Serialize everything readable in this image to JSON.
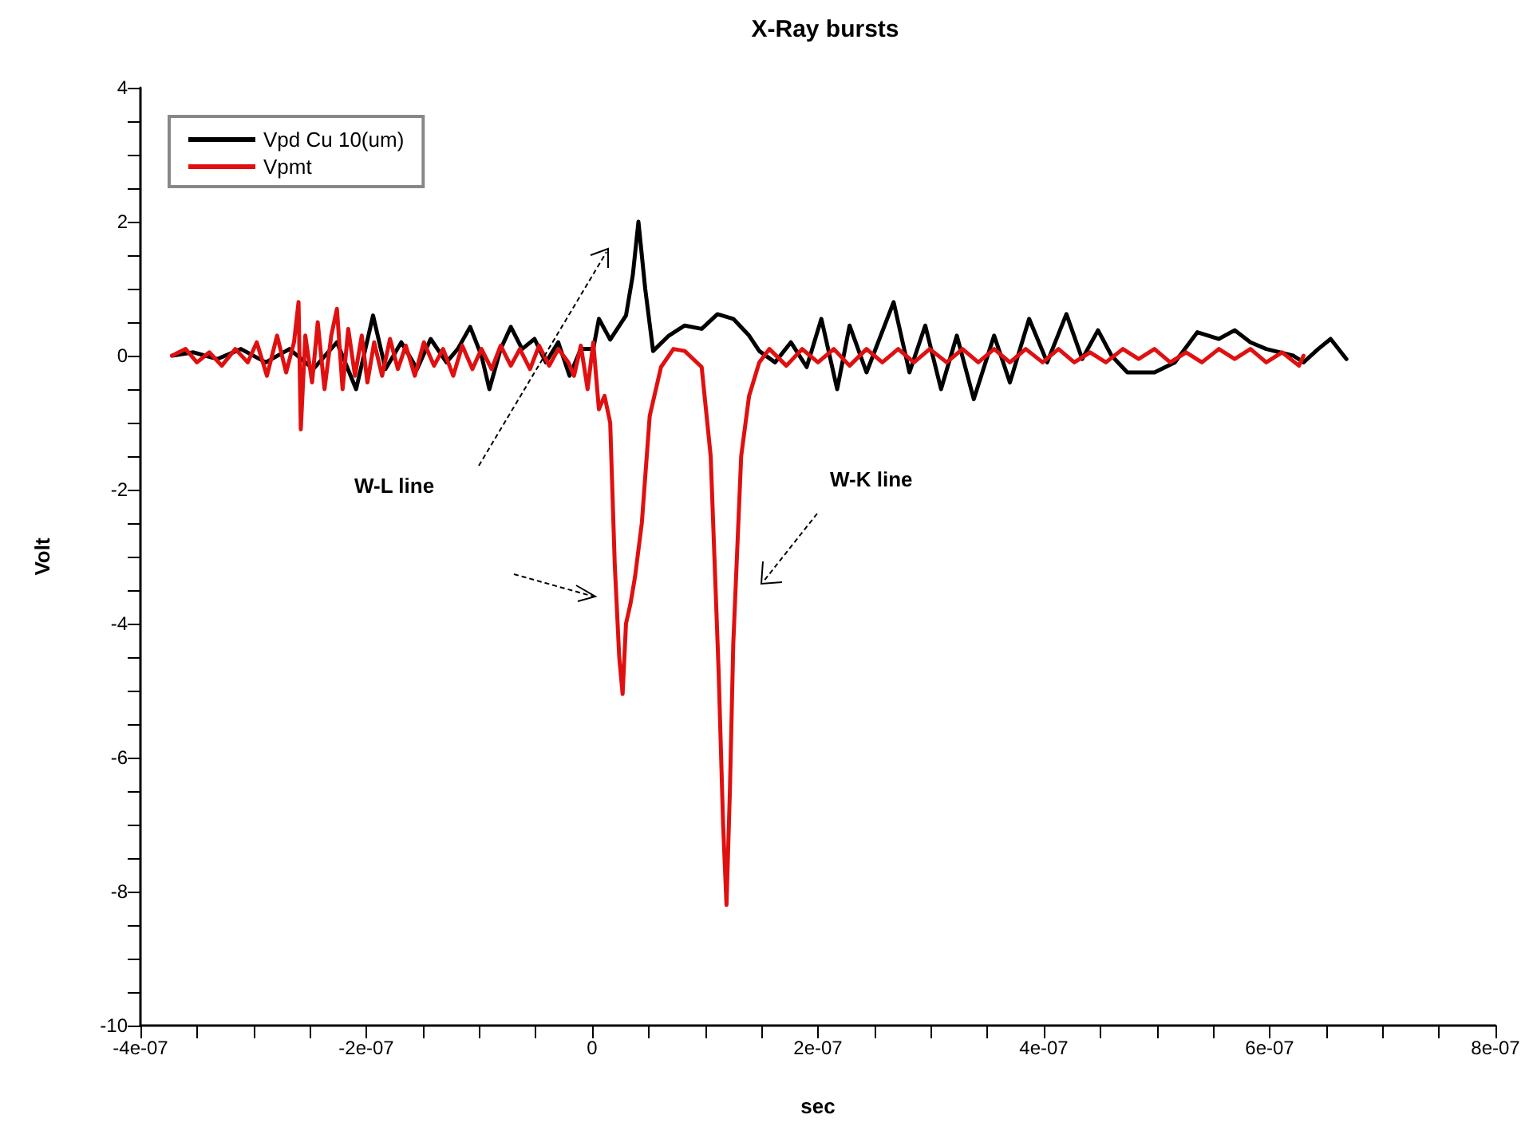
{
  "chart_data": {
    "type": "line",
    "title": "X-Ray bursts",
    "xlabel": "sec",
    "ylabel": "Volt",
    "annotations": [
      "W-L line",
      "W-K line"
    ],
    "series": [
      {
        "name": "Vpd Cu 10(um)",
        "color": "#000000",
        "x": [
          -3.72e-07,
          -3.53e-07,
          -3.32e-07,
          -3.11e-07,
          -2.89e-07,
          -2.68e-07,
          -2.47e-07,
          -2.26e-07,
          -2.09e-07,
          -1.94e-07,
          -1.83e-07,
          -1.69e-07,
          -1.55e-07,
          -1.43e-07,
          -1.29e-07,
          -1.19e-07,
          -1.08e-07,
          -9.8e-08,
          -9.1e-08,
          -8.1e-08,
          -7.2e-08,
          -6.2e-08,
          -5.1e-08,
          -4.1e-08,
          -3e-08,
          -2e-08,
          -1e-08,
          1e-09,
          6e-09,
          1.6e-08,
          3e-08,
          3.6e-08,
          4.1e-08,
          4.7e-08,
          5.4e-08,
          6.8e-08,
          8.2e-08,
          9.7e-08,
          1.11e-07,
          1.25e-07,
          1.39e-07,
          1.48e-07,
          1.62e-07,
          1.76e-07,
          1.9e-07,
          2.03e-07,
          2.17e-07,
          2.28e-07,
          2.43e-07,
          2.67e-07,
          2.81e-07,
          2.95e-07,
          3.09e-07,
          3.23e-07,
          3.38e-07,
          3.56e-07,
          3.7e-07,
          3.87e-07,
          4.03e-07,
          4.2e-07,
          4.34e-07,
          4.48e-07,
          4.6e-07,
          4.74e-07,
          4.98e-07,
          5.16e-07,
          5.36e-07,
          5.55e-07,
          5.69e-07,
          5.83e-07,
          5.97e-07,
          6.21e-07,
          6.3e-07,
          6.43e-07,
          6.54e-07,
          6.68e-07
        ],
        "values": [
          0,
          0.05,
          -0.05,
          0.1,
          -0.1,
          0.1,
          -0.2,
          0.2,
          -0.5,
          0.6,
          -0.2,
          0.2,
          -0.2,
          0.25,
          -0.1,
          0.1,
          0.43,
          0,
          -0.5,
          0.1,
          0.43,
          0.1,
          0.25,
          -0.1,
          0.2,
          -0.3,
          0.1,
          0.1,
          0.55,
          0.24,
          0.6,
          1.2,
          2.0,
          1.0,
          0.07,
          0.3,
          0.45,
          0.4,
          0.62,
          0.55,
          0.3,
          0.07,
          -0.1,
          0.2,
          -0.17,
          0.55,
          -0.5,
          0.45,
          -0.25,
          0.8,
          -0.25,
          0.45,
          -0.5,
          0.3,
          -0.65,
          0.3,
          -0.4,
          0.55,
          -0.1,
          0.62,
          -0.05,
          0.38,
          0,
          -0.25,
          -0.25,
          -0.1,
          0.35,
          0.25,
          0.38,
          0.2,
          0.1,
          0,
          -0.1,
          0.1,
          0.25,
          -0.05
        ]
      },
      {
        "name": "Vpmt",
        "color": "#e01010",
        "x": [
          -3.72e-07,
          -3.6e-07,
          -3.5e-07,
          -3.39e-07,
          -3.28e-07,
          -3.16e-07,
          -3.05e-07,
          -2.97e-07,
          -2.88e-07,
          -2.79e-07,
          -2.71e-07,
          -2.64e-07,
          -2.6e-07,
          -2.58e-07,
          -2.54e-07,
          -2.48e-07,
          -2.43e-07,
          -2.37e-07,
          -2.31e-07,
          -2.26e-07,
          -2.21e-07,
          -2.16e-07,
          -2.1e-07,
          -2.04e-07,
          -1.99e-07,
          -1.93e-07,
          -1.86e-07,
          -1.79e-07,
          -1.72e-07,
          -1.65e-07,
          -1.57e-07,
          -1.49e-07,
          -1.4e-07,
          -1.32e-07,
          -1.23e-07,
          -1.15e-07,
          -1.06e-07,
          -9.8e-08,
          -8.9e-08,
          -8.1e-08,
          -7.2e-08,
          -6.4e-08,
          -5.5e-08,
          -4.7e-08,
          -3.8e-08,
          -3e-08,
          -2.1e-08,
          -1.6e-08,
          -1e-08,
          -4e-09,
          1e-09,
          6e-09,
          1.1e-08,
          1.6e-08,
          2e-08,
          2.4e-08,
          2.7e-08,
          3e-08,
          3.4e-08,
          3.8e-08,
          4.4e-08,
          5.1e-08,
          6.1e-08,
          7.2e-08,
          8.2e-08,
          9.7e-08,
          1.05e-07,
          1.12e-07,
          1.16e-07,
          1.19e-07,
          1.22e-07,
          1.25e-07,
          1.32e-07,
          1.39e-07,
          1.48e-07,
          1.57e-07,
          1.72e-07,
          1.86e-07,
          2e-07,
          2.14e-07,
          2.28e-07,
          2.43e-07,
          2.57e-07,
          2.71e-07,
          2.85e-07,
          2.99e-07,
          3.14e-07,
          3.28e-07,
          3.42e-07,
          3.56e-07,
          3.7e-07,
          3.84e-07,
          3.99e-07,
          4.13e-07,
          4.27e-07,
          4.41e-07,
          4.55e-07,
          4.7e-07,
          4.84e-07,
          4.98e-07,
          5.12e-07,
          5.26e-07,
          5.4e-07,
          5.55e-07,
          5.69e-07,
          5.83e-07,
          5.97e-07,
          6.11e-07,
          6.26e-07,
          6.3e-07
        ],
        "values": [
          0,
          0.1,
          -0.1,
          0.05,
          -0.15,
          0.1,
          -0.1,
          0.2,
          -0.3,
          0.3,
          -0.25,
          0.2,
          0.8,
          -1.1,
          0.3,
          -0.4,
          0.5,
          -0.5,
          0.3,
          0.7,
          -0.5,
          0.4,
          -0.3,
          0.3,
          -0.4,
          0.2,
          -0.3,
          0.25,
          -0.2,
          0.15,
          -0.3,
          0.2,
          -0.15,
          0.1,
          -0.3,
          0.15,
          -0.2,
          0.1,
          -0.2,
          0.15,
          -0.15,
          0.1,
          -0.2,
          0.15,
          -0.15,
          0.1,
          -0.1,
          -0.3,
          0.15,
          -0.5,
          0.2,
          -0.8,
          -0.6,
          -1.0,
          -3.1,
          -4.5,
          -5.05,
          -4.0,
          -3.7,
          -3.3,
          -2.5,
          -0.9,
          -0.17,
          0.1,
          0.07,
          -0.17,
          -1.5,
          -4.7,
          -7.0,
          -8.2,
          -6.5,
          -4.3,
          -1.5,
          -0.6,
          -0.1,
          0.1,
          -0.15,
          0.1,
          -0.1,
          0.1,
          -0.15,
          0.1,
          -0.1,
          0.1,
          -0.1,
          0.1,
          -0.1,
          0.1,
          -0.1,
          0.1,
          -0.1,
          0.1,
          -0.1,
          0.1,
          -0.1,
          0.05,
          -0.1,
          0.1,
          -0.05,
          0.1,
          -0.1,
          0.05,
          -0.1,
          0.1,
          -0.05,
          0.1,
          -0.1,
          0.05,
          -0.15,
          0
        ]
      }
    ],
    "xlim": [
      -4e-07,
      8e-07
    ],
    "xticks": [
      {
        "value": -4e-07,
        "label": "-4e-07"
      },
      {
        "value": -3.5e-07,
        "label": null
      },
      {
        "value": -3e-07,
        "label": null
      },
      {
        "value": -2.5e-07,
        "label": null
      },
      {
        "value": -2e-07,
        "label": "-2e-07"
      },
      {
        "value": -1.5e-07,
        "label": null
      },
      {
        "value": -1e-07,
        "label": null
      },
      {
        "value": -5e-08,
        "label": null
      },
      0,
      {
        "value": 5e-08,
        "label": null
      },
      {
        "value": 1e-07,
        "label": null
      },
      {
        "value": 1.5e-07,
        "label": null
      },
      {
        "value": 2e-07,
        "label": "2e-07"
      },
      {
        "value": 2.5e-07,
        "label": null
      },
      {
        "value": 3e-07,
        "label": null
      },
      {
        "value": 3.5e-07,
        "label": null
      },
      {
        "value": 4e-07,
        "label": "4e-07"
      },
      {
        "value": 4.5e-07,
        "label": null
      },
      {
        "value": 5e-07,
        "label": null
      },
      {
        "value": 5.5e-07,
        "label": null
      },
      {
        "value": 6e-07,
        "label": "6e-07"
      },
      {
        "value": 6.5e-07,
        "label": null
      },
      {
        "value": 7e-07,
        "label": null
      },
      {
        "value": 7.5e-07,
        "label": null
      },
      {
        "value": 8e-07,
        "label": "8e-07"
      }
    ],
    "ylim": [
      -10,
      4
    ],
    "yticks": [
      -10,
      {
        "value": -9.5,
        "label": null
      },
      {
        "value": -9,
        "label": null
      },
      {
        "value": -8.5,
        "label": null
      },
      -8,
      {
        "value": -7.5,
        "label": null
      },
      {
        "value": -7,
        "label": null
      },
      {
        "value": -6.5,
        "label": null
      },
      -6,
      {
        "value": -5.5,
        "label": null
      },
      {
        "value": -5,
        "label": null
      },
      {
        "value": -4.5,
        "label": null
      },
      -4,
      {
        "value": -3.5,
        "label": null
      },
      {
        "value": -3,
        "label": null
      },
      {
        "value": -2.5,
        "label": null
      },
      -2,
      {
        "value": -1.5,
        "label": null
      },
      {
        "value": -1,
        "label": null
      },
      {
        "value": -0.5,
        "label": null
      },
      0,
      {
        "value": 0.5,
        "label": null
      },
      {
        "value": 1,
        "label": null
      },
      {
        "value": 1.5,
        "label": null
      },
      2,
      {
        "value": 2.5,
        "label": null
      },
      {
        "value": 3,
        "label": null
      },
      {
        "value": 3.5,
        "label": null
      },
      4
    ],
    "grid": false,
    "legend": "top left",
    "marker": "none",
    "line_style": "solid"
  }
}
